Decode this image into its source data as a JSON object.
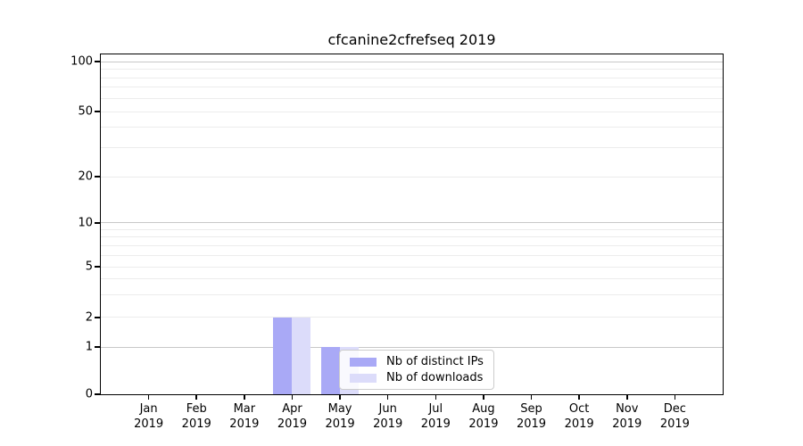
{
  "chart_data": {
    "type": "bar",
    "title": "cfcanine2cfrefseq 2019",
    "categories": [
      "Jan",
      "Feb",
      "Mar",
      "Apr",
      "May",
      "Jun",
      "Jul",
      "Aug",
      "Sep",
      "Oct",
      "Nov",
      "Dec"
    ],
    "tick_year": "2019",
    "series": [
      {
        "name": "Nb of distinct IPs",
        "color": "#a9a9f6",
        "values": [
          0,
          0,
          0,
          2,
          1,
          0,
          0,
          0,
          0,
          0,
          0,
          0
        ]
      },
      {
        "name": "Nb of downloads",
        "color": "#dcdcfa",
        "values": [
          0,
          0,
          0,
          2,
          1,
          0,
          0,
          0,
          0,
          0,
          0,
          0
        ]
      }
    ],
    "yscale": "symlog",
    "yticks": [
      0,
      1,
      2,
      5,
      10,
      20,
      50,
      100
    ],
    "ylim": [
      0,
      110
    ],
    "xlabel": "",
    "ylabel": "",
    "grid": "horizontal",
    "legend_position": "inside lower-center-left",
    "colors": {
      "major_grid": "#c8c8c8",
      "minor_grid": "#ececec",
      "spine": "#000000",
      "background": "#ffffff"
    }
  }
}
